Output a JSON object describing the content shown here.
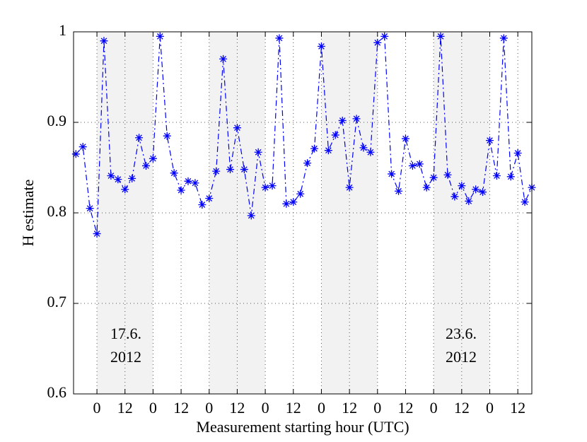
{
  "chart_data": {
    "type": "line",
    "xlabel": "Measurement starting hour (UTC)",
    "ylabel": "H estimate",
    "x": [
      -9,
      -6,
      -3,
      0,
      3,
      6,
      9,
      12,
      15,
      18,
      21,
      24,
      27,
      30,
      33,
      36,
      39,
      42,
      45,
      48,
      51,
      54,
      57,
      60,
      63,
      66,
      69,
      72,
      75,
      78,
      81,
      84,
      87,
      90,
      93,
      96,
      99,
      102,
      105,
      108,
      111,
      114,
      117,
      120,
      123,
      126,
      129,
      132,
      135,
      138,
      141,
      144,
      147,
      150,
      153,
      156,
      159,
      162,
      165,
      168,
      171,
      174,
      177,
      180,
      183,
      186
    ],
    "series": [
      {
        "color": "#0000ff",
        "values": [
          0.865,
          0.873,
          0.805,
          0.777,
          0.99,
          0.841,
          0.837,
          0.826,
          0.838,
          0.883,
          0.852,
          0.86,
          0.995,
          0.885,
          0.844,
          0.825,
          0.835,
          0.833,
          0.809,
          0.816,
          0.846,
          0.97,
          0.848,
          0.894,
          0.848,
          0.797,
          0.867,
          0.828,
          0.83,
          0.993,
          0.81,
          0.812,
          0.821,
          0.855,
          0.871,
          0.984,
          0.869,
          0.886,
          0.902,
          0.828,
          0.904,
          0.872,
          0.867,
          0.988,
          0.995,
          0.843,
          0.824,
          0.882,
          0.852,
          0.854,
          0.828,
          0.839,
          0.995,
          0.842,
          0.818,
          0.83,
          0.813,
          0.826,
          0.823,
          0.88,
          0.841,
          0.993,
          0.84,
          0.866,
          0.812,
          0.828
        ]
      }
    ],
    "shaded_xranges": [
      [
        0,
        24
      ],
      [
        48,
        72
      ],
      [
        96,
        120
      ],
      [
        144,
        168
      ]
    ],
    "annotations": [
      [
        "17.6.",
        "2012"
      ],
      [
        "23.6.",
        "2012"
      ]
    ],
    "xlim": [
      -10,
      186
    ],
    "ylim": [
      0.6,
      1
    ],
    "xticks": [
      0,
      12,
      {
        "value": 24,
        "label": "0"
      },
      {
        "value": 36,
        "label": "12"
      },
      {
        "value": 48,
        "label": "0"
      },
      {
        "value": 60,
        "label": "12"
      },
      {
        "value": 72,
        "label": "0"
      },
      {
        "value": 84,
        "label": "12"
      },
      {
        "value": 96,
        "label": "0"
      },
      {
        "value": 108,
        "label": "12"
      },
      {
        "value": 120,
        "label": "0"
      },
      {
        "value": 132,
        "label": "12"
      },
      {
        "value": 144,
        "label": "0"
      },
      {
        "value": 156,
        "label": "12"
      },
      {
        "value": 168,
        "label": "0"
      },
      {
        "value": 180,
        "label": "12"
      }
    ],
    "yticks": [
      0.6,
      0.7,
      0.8,
      0.9,
      1
    ],
    "grid": true
  }
}
